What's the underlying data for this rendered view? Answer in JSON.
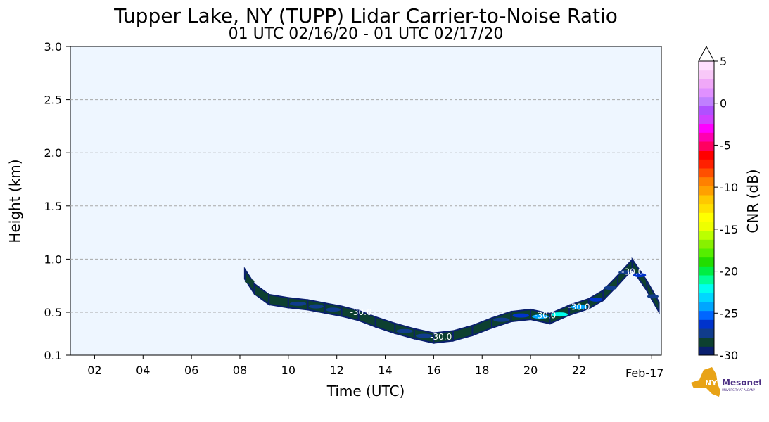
{
  "title": "Tupper Lake, NY (TUPP) Lidar Carrier-to-Noise Ratio",
  "subtitle": "01 UTC 02/16/20 - 01 UTC 02/17/20",
  "chart_data": {
    "type": "heatmap",
    "xlabel": "Time (UTC)",
    "ylabel": "Height (km)",
    "xlim": [
      1.0,
      25.4
    ],
    "ylim": [
      0.1,
      3.0
    ],
    "x_tick_labels": [
      "02",
      "04",
      "06",
      "08",
      "10",
      "12",
      "14",
      "16",
      "18",
      "20",
      "22"
    ],
    "x_tick_values": [
      2,
      4,
      6,
      8,
      10,
      12,
      14,
      16,
      18,
      20,
      22
    ],
    "date_label": "Feb-17",
    "date_label_at": 25,
    "y_tick_labels": [
      "0.1",
      "0.5",
      "1.0",
      "1.5",
      "2.0",
      "2.5",
      "3.0"
    ],
    "y_tick_values": [
      0.1,
      0.5,
      1.0,
      1.5,
      2.0,
      2.5,
      3.0
    ],
    "grid": "horizontal dashed",
    "colorbar": {
      "label": "CNR (dB)",
      "range": [
        -30,
        5
      ],
      "tick_labels": [
        "5",
        "0",
        "-5",
        "-10",
        "-15",
        "-20",
        "-25",
        "-30"
      ],
      "tick_values": [
        5,
        0,
        -5,
        -10,
        -15,
        -20,
        -25,
        -30
      ],
      "colors": [
        "#0a1f6e",
        "#0d4030",
        "#103c8c",
        "#0033cc",
        "#0066ff",
        "#00a6ff",
        "#00d7ff",
        "#00ffee",
        "#00ff99",
        "#00ee44",
        "#22dd00",
        "#55ee00",
        "#88f000",
        "#bbff00",
        "#eeff00",
        "#ffff00",
        "#ffe000",
        "#ffc800",
        "#ffa000",
        "#ff8000",
        "#ff5000",
        "#ff2000",
        "#ff0000",
        "#ff0060",
        "#ff00b0",
        "#ff00ff",
        "#d040ff",
        "#b050ff",
        "#c080ff",
        "#e090ff",
        "#f0a8f8",
        "#f8c8f8",
        "#ffe0ff"
      ]
    },
    "contour_labels": [
      "-30.0",
      "-30.0",
      "-30.0",
      "-30.0",
      "-30.0"
    ],
    "cloud_layer": {
      "time": [
        8.2,
        8.6,
        9.2,
        10.0,
        10.8,
        11.5,
        12.2,
        12.9,
        13.6,
        14.4,
        15.2,
        16.0,
        16.8,
        17.6,
        18.4,
        19.2,
        20.0,
        20.8,
        21.6,
        22.4,
        23.0,
        23.6,
        24.2,
        24.8,
        25.3
      ],
      "height_km": [
        0.86,
        0.72,
        0.62,
        0.59,
        0.57,
        0.54,
        0.51,
        0.47,
        0.41,
        0.35,
        0.3,
        0.26,
        0.28,
        0.33,
        0.4,
        0.46,
        0.48,
        0.44,
        0.52,
        0.58,
        0.66,
        0.8,
        0.95,
        0.75,
        0.55
      ],
      "cnr_db": [
        -29,
        -29,
        -29,
        -28,
        -28,
        -28,
        -29,
        -29,
        -29,
        -28,
        -28,
        -29,
        -29,
        -29,
        -28,
        -27,
        -24,
        -22,
        -25,
        -27,
        -28,
        -28,
        -27,
        -28,
        -28
      ]
    }
  },
  "logo": {
    "text": "NYS",
    "subtext": "Mesonet",
    "subtext2": "UNIVERSITY AT ALBANY"
  }
}
